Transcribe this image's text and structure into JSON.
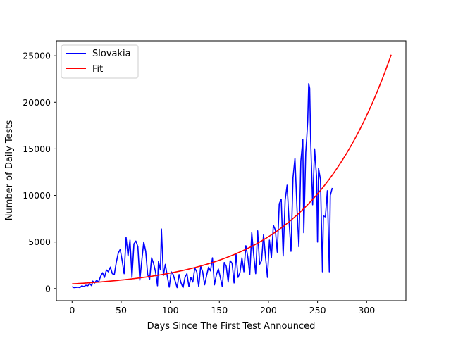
{
  "chart_data": {
    "type": "line",
    "xlabel": "Days Since The First Test Announced",
    "ylabel": "Number of Daily Tests",
    "xlim": [
      -16,
      340
    ],
    "ylim": [
      -1300,
      26600
    ],
    "xticks": [
      0,
      50,
      100,
      150,
      200,
      250,
      300
    ],
    "yticks": [
      0,
      5000,
      10000,
      15000,
      20000,
      25000
    ],
    "grid": false,
    "legend_position": "top-left",
    "series": [
      {
        "name": "Slovakia",
        "color": "#0000ff",
        "points": [
          [
            0,
            200
          ],
          [
            2,
            100
          ],
          [
            4,
            120
          ],
          [
            6,
            150
          ],
          [
            8,
            100
          ],
          [
            10,
            300
          ],
          [
            12,
            200
          ],
          [
            14,
            350
          ],
          [
            16,
            300
          ],
          [
            18,
            500
          ],
          [
            20,
            300
          ],
          [
            21,
            800
          ],
          [
            23,
            600
          ],
          [
            25,
            900
          ],
          [
            27,
            700
          ],
          [
            29,
            1300
          ],
          [
            31,
            1700
          ],
          [
            33,
            1200
          ],
          [
            35,
            2000
          ],
          [
            37,
            1800
          ],
          [
            39,
            2300
          ],
          [
            41,
            1600
          ],
          [
            43,
            1500
          ],
          [
            45,
            2800
          ],
          [
            47,
            3800
          ],
          [
            49,
            4200
          ],
          [
            51,
            3000
          ],
          [
            53,
            1600
          ],
          [
            55,
            5500
          ],
          [
            57,
            3500
          ],
          [
            59,
            5200
          ],
          [
            61,
            1200
          ],
          [
            63,
            4800
          ],
          [
            65,
            5100
          ],
          [
            67,
            4500
          ],
          [
            69,
            900
          ],
          [
            71,
            3000
          ],
          [
            73,
            5000
          ],
          [
            75,
            4000
          ],
          [
            77,
            1500
          ],
          [
            79,
            1000
          ],
          [
            81,
            3300
          ],
          [
            83,
            2700
          ],
          [
            85,
            1800
          ],
          [
            87,
            300
          ],
          [
            88,
            2900
          ],
          [
            90,
            2000
          ],
          [
            91,
            6400
          ],
          [
            93,
            1400
          ],
          [
            95,
            2600
          ],
          [
            97,
            1300
          ],
          [
            99,
            150
          ],
          [
            101,
            1800
          ],
          [
            103,
            1500
          ],
          [
            105,
            800
          ],
          [
            107,
            100
          ],
          [
            109,
            1500
          ],
          [
            111,
            600
          ],
          [
            113,
            100
          ],
          [
            115,
            1200
          ],
          [
            117,
            1600
          ],
          [
            119,
            200
          ],
          [
            121,
            1200
          ],
          [
            123,
            700
          ],
          [
            125,
            2200
          ],
          [
            127,
            1800
          ],
          [
            129,
            200
          ],
          [
            131,
            2400
          ],
          [
            133,
            1800
          ],
          [
            135,
            400
          ],
          [
            137,
            1400
          ],
          [
            139,
            2300
          ],
          [
            141,
            1900
          ],
          [
            143,
            3300
          ],
          [
            145,
            400
          ],
          [
            147,
            1500
          ],
          [
            149,
            2100
          ],
          [
            151,
            1200
          ],
          [
            153,
            200
          ],
          [
            155,
            2800
          ],
          [
            157,
            2400
          ],
          [
            159,
            700
          ],
          [
            161,
            3000
          ],
          [
            163,
            2700
          ],
          [
            165,
            600
          ],
          [
            167,
            3700
          ],
          [
            169,
            1200
          ],
          [
            171,
            1700
          ],
          [
            173,
            3300
          ],
          [
            175,
            1800
          ],
          [
            177,
            4600
          ],
          [
            179,
            3400
          ],
          [
            181,
            1500
          ],
          [
            183,
            6000
          ],
          [
            185,
            3600
          ],
          [
            187,
            1600
          ],
          [
            189,
            6200
          ],
          [
            191,
            2600
          ],
          [
            193,
            3000
          ],
          [
            195,
            5800
          ],
          [
            197,
            3400
          ],
          [
            199,
            1200
          ],
          [
            201,
            5200
          ],
          [
            203,
            3300
          ],
          [
            205,
            6800
          ],
          [
            207,
            6300
          ],
          [
            209,
            3900
          ],
          [
            211,
            9100
          ],
          [
            213,
            9600
          ],
          [
            215,
            3500
          ],
          [
            217,
            9500
          ],
          [
            219,
            11100
          ],
          [
            221,
            7200
          ],
          [
            223,
            4000
          ],
          [
            225,
            11900
          ],
          [
            227,
            14000
          ],
          [
            229,
            8800
          ],
          [
            231,
            4500
          ],
          [
            233,
            13700
          ],
          [
            235,
            16000
          ],
          [
            236,
            6000
          ],
          [
            238,
            14600
          ],
          [
            239,
            16200
          ],
          [
            240,
            18000
          ],
          [
            241,
            22000
          ],
          [
            242,
            21500
          ],
          [
            243,
            16000
          ],
          [
            245,
            9000
          ],
          [
            247,
            15000
          ],
          [
            249,
            12000
          ],
          [
            250,
            5000
          ],
          [
            251,
            12900
          ],
          [
            253,
            11700
          ],
          [
            255,
            1800
          ],
          [
            256,
            7800
          ],
          [
            258,
            7700
          ],
          [
            260,
            10500
          ],
          [
            262,
            1800
          ],
          [
            263,
            10000
          ],
          [
            265,
            10800
          ]
        ]
      },
      {
        "name": "Fit",
        "color": "#ff0000",
        "function": {
          "form": "a*exp(b*x)",
          "a": 500,
          "b": 0.01205,
          "x_start": 0,
          "x_end": 325
        }
      }
    ]
  }
}
